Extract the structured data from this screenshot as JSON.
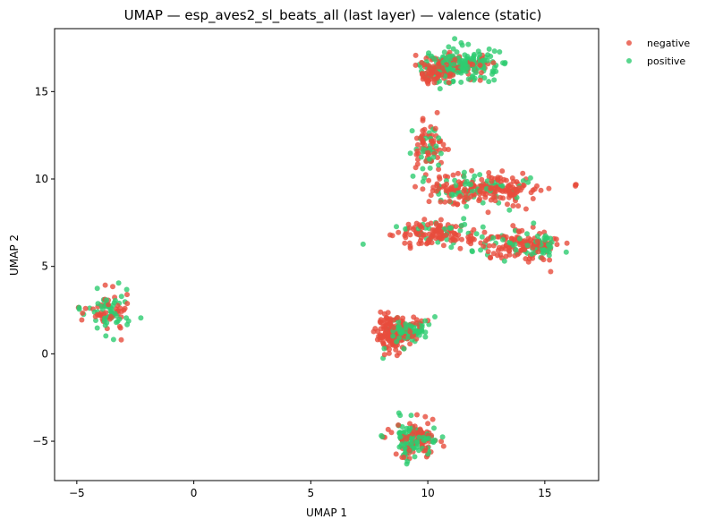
{
  "chart_data": {
    "type": "scatter",
    "title": "UMAP — esp_aves2_sl_beats_all (last layer) — valence (static)",
    "xlabel": "UMAP 1",
    "ylabel": "UMAP 2",
    "xlim": [
      -5.95,
      17.3
    ],
    "ylim": [
      -7.25,
      18.6
    ],
    "xticks": [
      -5,
      0,
      5,
      10,
      15
    ],
    "yticks": [
      -5,
      0,
      5,
      10,
      15
    ],
    "grid": false,
    "legend_position": "outside-top-right",
    "series": [
      {
        "name": "negative",
        "color": "#e74c3c"
      },
      {
        "name": "positive",
        "color": "#2ecc71"
      }
    ],
    "clusters": [
      {
        "cx": 11.3,
        "cy": 16.5,
        "sx": 0.75,
        "sy": 0.4,
        "negative": 60,
        "positive": 190
      },
      {
        "cx": 10.3,
        "cy": 16.0,
        "sx": 0.35,
        "sy": 0.3,
        "negative": 45,
        "positive": 10
      },
      {
        "cx": 10.0,
        "cy": 11.8,
        "sx": 0.35,
        "sy": 0.65,
        "negative": 60,
        "positive": 35
      },
      {
        "cx": 12.6,
        "cy": 9.4,
        "sx": 1.1,
        "sy": 0.45,
        "negative": 160,
        "positive": 50
      },
      {
        "cx": 10.6,
        "cy": 9.3,
        "sx": 0.45,
        "sy": 0.4,
        "negative": 25,
        "positive": 10
      },
      {
        "cx": 10.3,
        "cy": 6.9,
        "sx": 0.95,
        "sy": 0.35,
        "negative": 110,
        "positive": 30
      },
      {
        "cx": 13.7,
        "cy": 6.2,
        "sx": 0.9,
        "sy": 0.45,
        "negative": 110,
        "positive": 35
      },
      {
        "cx": 14.9,
        "cy": 6.3,
        "sx": 0.3,
        "sy": 0.35,
        "negative": 20,
        "positive": 25
      },
      {
        "cx": 16.3,
        "cy": 9.65,
        "sx": 0.03,
        "sy": 0.03,
        "negative": 3,
        "positive": 0
      },
      {
        "cx": -3.6,
        "cy": 2.3,
        "sx": 0.45,
        "sy": 0.6,
        "negative": 45,
        "positive": 55
      },
      {
        "cx": -4.9,
        "cy": 2.6,
        "sx": 0.12,
        "sy": 0.05,
        "negative": 2,
        "positive": 3
      },
      {
        "cx": 8.5,
        "cy": 1.1,
        "sx": 0.35,
        "sy": 0.45,
        "negative": 160,
        "positive": 15
      },
      {
        "cx": 9.3,
        "cy": 1.4,
        "sx": 0.4,
        "sy": 0.35,
        "negative": 20,
        "positive": 60
      },
      {
        "cx": 9.5,
        "cy": -4.9,
        "sx": 0.45,
        "sy": 0.55,
        "negative": 80,
        "positive": 95
      },
      {
        "cx": 8.1,
        "cy": -4.75,
        "sx": 0.04,
        "sy": 0.04,
        "negative": 2,
        "positive": 2
      }
    ]
  }
}
